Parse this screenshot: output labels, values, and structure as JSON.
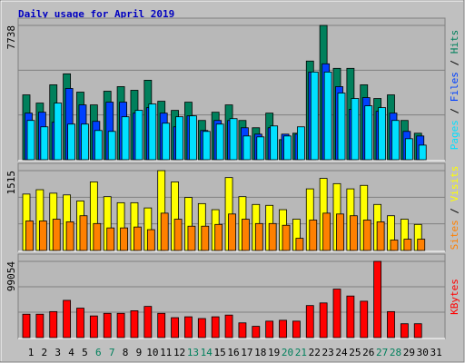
{
  "chart_data": [
    {
      "type": "bar",
      "title": "Daily usage for April 2019",
      "label_separator": " / ",
      "ylim": [
        0,
        7738
      ],
      "yticks": [
        7738
      ],
      "grid": true,
      "series": [
        {
          "name": "Hits",
          "color": "#00805c",
          "values": [
            3737,
            3264,
            4316,
            4948,
            3895,
            3158,
            3948,
            4211,
            4000,
            4580,
            3369,
            2843,
            3316,
            2263,
            2737,
            3158,
            2263,
            1842,
            2685,
            1158,
            1527,
            5685,
            7738,
            5264,
            5264,
            4316,
            3527,
            3737,
            2263,
            1527,
            null
          ]
        },
        {
          "name": "Files",
          "color": "#0040ff",
          "values": [
            2685,
            2737,
            2158,
            4106,
            3158,
            2211,
            3316,
            3316,
            2685,
            3000,
            2685,
            1895,
            2527,
            1684,
            2263,
            2263,
            1842,
            1474,
            1842,
            1474,
            1474,
            5053,
            5527,
            4211,
            2895,
            3579,
            2790,
            2685,
            1632,
            1368,
            null
          ]
        },
        {
          "name": "Pages",
          "color": "#00e0ff",
          "values": [
            2263,
            1895,
            3264,
            2053,
            2053,
            1684,
            1632,
            2474,
            2843,
            3211,
            2105,
            2474,
            2527,
            1632,
            2053,
            2368,
            1368,
            1316,
            1947,
            1368,
            1895,
            5053,
            5053,
            3842,
            3527,
            3105,
            3000,
            2263,
            1211,
            842,
            null
          ]
        }
      ]
    },
    {
      "type": "bar",
      "ylim": [
        0,
        1515
      ],
      "yticks": [
        1515
      ],
      "grid": true,
      "series": [
        {
          "name": "Visits",
          "color": "#ffff00",
          "values": [
            1070,
            1153,
            1087,
            1054,
            939,
            1301,
            1021,
            906,
            906,
            807,
            1515,
            1301,
            1005,
            889,
            774,
            1383,
            1021,
            873,
            856,
            774,
            593,
            1169,
            1367,
            1268,
            1169,
            1235,
            873,
            659,
            593,
            494,
            null
          ]
        },
        {
          "name": "Sites",
          "color": "#ff8000",
          "values": [
            560,
            560,
            593,
            544,
            659,
            511,
            428,
            428,
            445,
            395,
            708,
            593,
            461,
            461,
            494,
            692,
            593,
            511,
            511,
            478,
            231,
            577,
            708,
            692,
            659,
            577,
            544,
            198,
            214,
            214,
            null
          ]
        }
      ]
    },
    {
      "type": "bar",
      "ylim": [
        0,
        99054
      ],
      "yticks": [
        99054
      ],
      "grid": true,
      "categories": [
        "1",
        "2",
        "3",
        "4",
        "5",
        "6",
        "7",
        "8",
        "9",
        "10",
        "11",
        "12",
        "13",
        "14",
        "15",
        "16",
        "17",
        "18",
        "19",
        "20",
        "21",
        "22",
        "23",
        "24",
        "25",
        "26",
        "27",
        "28",
        "29",
        "30",
        "31"
      ],
      "label_color": "#000000",
      "weekend_label_color": "#00805c",
      "weekend_indices": [
        5,
        6,
        12,
        13,
        19,
        20,
        26,
        27
      ],
      "series": [
        {
          "name": "KBytes",
          "color": "#ff0000",
          "values": [
            30392,
            30392,
            33768,
            48402,
            38272,
            28141,
            31517,
            31517,
            34895,
            40522,
            31517,
            25889,
            27015,
            24764,
            27015,
            29266,
            19136,
            14633,
            21387,
            22513,
            21387,
            41648,
            45025,
            63035,
            54030,
            47277,
            99054,
            33768,
            18010,
            18010,
            null
          ]
        }
      ]
    }
  ]
}
